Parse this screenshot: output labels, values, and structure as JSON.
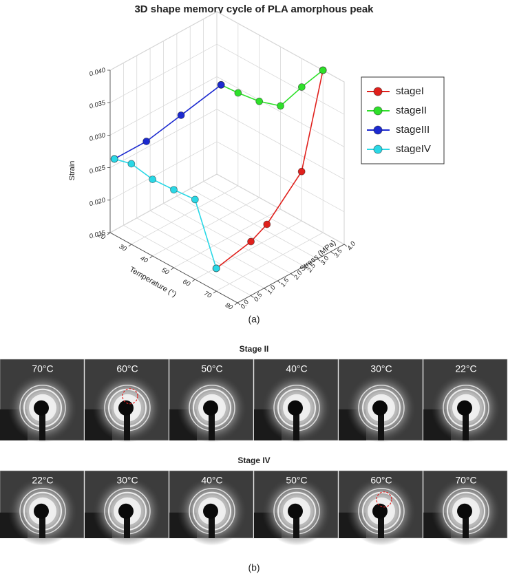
{
  "chart_data": {
    "type": "line3d",
    "title": "3D shape memory cycle of  PLA amorphous peak",
    "xlabel": "Temperature (°)",
    "ylabel": "Stress (MPa)",
    "zlabel": "Strain",
    "caption": "(a)",
    "xlim": [
      20,
      80
    ],
    "xticks": [
      20,
      30,
      40,
      50,
      60,
      70,
      80
    ],
    "ylim": [
      0,
      4
    ],
    "yticks": [
      {
        "value": 0,
        "label": "0.0"
      },
      {
        "value": 0.5,
        "label": "0.5"
      },
      {
        "value": 1,
        "label": "1.0"
      },
      {
        "value": 1.5,
        "label": "1.5"
      },
      {
        "value": 2,
        "label": "2.0"
      },
      {
        "value": 2.5,
        "label": "2.5"
      },
      {
        "value": 3,
        "label": "3.0"
      },
      {
        "value": 3.5,
        "label": "3.5"
      },
      {
        "value": 4,
        "label": "4.0"
      }
    ],
    "zlim": [
      0.015,
      0.04
    ],
    "zticks": [
      0.015,
      {
        "value": 0.02,
        "label": "0.020"
      },
      0.025,
      {
        "value": 0.03,
        "label": "0.030"
      },
      0.035,
      {
        "value": 0.04,
        "label": "0.040"
      }
    ],
    "grid": true,
    "legend": "right",
    "series": [
      {
        "name": "stageI",
        "color": "#e0201c",
        "x": [
          70,
          70,
          70,
          70,
          70
        ],
        "y": [
          0,
          1.3,
          1.9,
          3.2,
          4
        ],
        "values": [
          0.0185,
          0.0197,
          0.021,
          0.0262,
          0.04
        ]
      },
      {
        "name": "stageII",
        "color": "#2ee02a",
        "x": [
          70,
          60,
          50,
          40,
          30,
          22
        ],
        "y": [
          4,
          4,
          4,
          4,
          4,
          4
        ],
        "values": [
          0.04,
          0.0356,
          0.0309,
          0.0298,
          0.0293,
          0.0291
        ]
      },
      {
        "name": "stageIII",
        "color": "#1c2ad0",
        "x": [
          22,
          22,
          22,
          22
        ],
        "y": [
          4,
          2.5,
          1.2,
          0
        ],
        "values": [
          0.0291,
          0.0278,
          0.0267,
          0.0267
        ]
      },
      {
        "name": "stageIV",
        "color": "#2ad8e6",
        "x": [
          22,
          30,
          40,
          50,
          60,
          70
        ],
        "y": [
          0,
          0,
          0,
          0,
          0,
          0
        ],
        "values": [
          0.0267,
          0.0274,
          0.0268,
          0.027,
          0.0273,
          0.0185
        ]
      }
    ]
  },
  "figure_b": {
    "row_1_title": "Stage II",
    "row_1_panels": [
      "70°C",
      "60°C",
      "50°C",
      "40°C",
      "30°C",
      "22°C"
    ],
    "row_2_title": "Stage IV",
    "row_2_panels": [
      "22°C",
      "30°C",
      "40°C",
      "50°C",
      "60°C",
      "70°C"
    ],
    "caption": "(b)"
  }
}
